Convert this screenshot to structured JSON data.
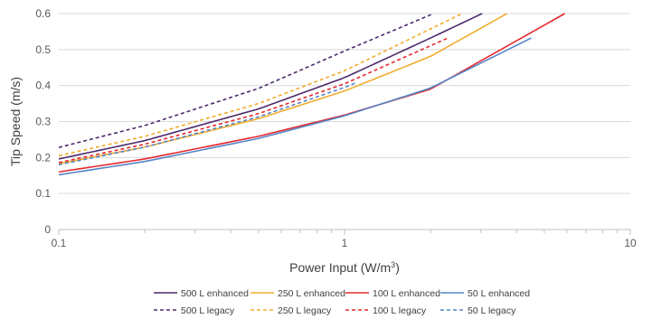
{
  "chart_data": {
    "type": "line",
    "title": "",
    "xlabel": "Power Input (W/m",
    "xlabel_sup": "3",
    "xlabel_close": ")",
    "ylabel": "Tip Speed (m/s)",
    "xscale": "log",
    "xlim": [
      0.1,
      10
    ],
    "ylim": [
      0,
      0.6
    ],
    "x_ticks": [
      0.1,
      1,
      10
    ],
    "x_tick_labels": [
      "0.1",
      "1",
      "10"
    ],
    "y_ticks": [
      0,
      0.1,
      0.2,
      0.3,
      0.4,
      0.5,
      0.6
    ],
    "y_tick_labels": [
      "0",
      "0.1",
      "0.2",
      "0.3",
      "0.4",
      "0.5",
      "0.6"
    ],
    "grid": "horizontal",
    "legend_position": "bottom",
    "series": [
      {
        "name": "500 L enhanced",
        "color": "#4b2a6b",
        "dash": "solid",
        "x": [
          0.1,
          0.2,
          0.5,
          1,
          2,
          3.03
        ],
        "y": [
          0.196,
          0.247,
          0.335,
          0.422,
          0.532,
          0.6
        ]
      },
      {
        "name": "250 L enhanced",
        "color": "#f0ad2e",
        "dash": "solid",
        "x": [
          0.1,
          0.2,
          0.5,
          1,
          2,
          3.7
        ],
        "y": [
          0.183,
          0.229,
          0.308,
          0.385,
          0.481,
          0.6
        ]
      },
      {
        "name": "100 L enhanced",
        "color": "#e4282f",
        "dash": "solid",
        "x": [
          0.1,
          0.2,
          0.5,
          1,
          2,
          5.9
        ],
        "y": [
          0.16,
          0.196,
          0.259,
          0.318,
          0.39,
          0.6
        ]
      },
      {
        "name": "50 L enhanced",
        "color": "#5585c7",
        "dash": "solid",
        "x": [
          0.1,
          0.2,
          0.5,
          1,
          2,
          4.5
        ],
        "y": [
          0.152,
          0.189,
          0.253,
          0.316,
          0.393,
          0.532
        ]
      },
      {
        "name": "500 L legacy",
        "color": "#4b2a6b",
        "dash": "dashed",
        "x": [
          0.1,
          0.2,
          0.5,
          1,
          2.05
        ],
        "y": [
          0.228,
          0.289,
          0.392,
          0.496,
          0.6
        ]
      },
      {
        "name": "250 L legacy",
        "color": "#f0ad2e",
        "dash": "dashed",
        "x": [
          0.1,
          0.2,
          0.5,
          1,
          2.58
        ],
        "y": [
          0.205,
          0.259,
          0.35,
          0.441,
          0.6
        ]
      },
      {
        "name": "100 L legacy",
        "color": "#e4282f",
        "dash": "dashed",
        "x": [
          0.1,
          0.2,
          0.5,
          1,
          2.3
        ],
        "y": [
          0.186,
          0.237,
          0.322,
          0.405,
          0.532
        ]
      },
      {
        "name": "50 L legacy",
        "color": "#5585c7",
        "dash": "dashed",
        "x": [
          0.1,
          0.2,
          0.5,
          1,
          1.1
        ],
        "y": [
          0.18,
          0.229,
          0.313,
          0.395,
          0.408
        ]
      }
    ]
  }
}
